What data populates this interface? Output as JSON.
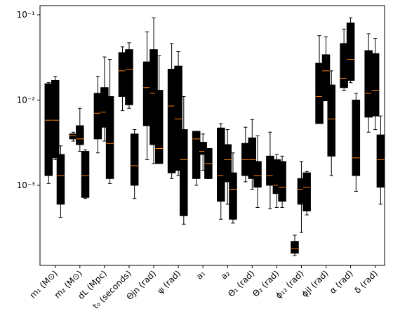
{
  "chart_data": {
    "type": "box",
    "categories": [
      "m₁ (M⊙)",
      "m₂ (M⊙)",
      "dL (Mpc)",
      "t₀ (seconds)",
      "Θjn (rad)",
      "ψ (rad)",
      "a₁",
      "a₂",
      "Θ₁ (rad)",
      "Θ₂ (rad)",
      "ϕ₁₂ (rad)",
      "ϕjl (rad)",
      "α (rad)",
      "δ (rad)"
    ],
    "log_scale": true,
    "ylim": [
      0.000115,
      0.128
    ],
    "yticks": [
      {
        "value": 0.001,
        "label": "10⁻³"
      },
      {
        "value": 0.01,
        "label": "10⁻²"
      },
      {
        "value": 0.1,
        "label": "10⁻¹"
      }
    ],
    "median_color": "#ff7f0e",
    "series": [
      {
        "color": "#1f77b4",
        "values": [
          {
            "whislo": 0.00105,
            "q1": 0.0013,
            "med": 0.0058,
            "q3": 0.0155,
            "whishi": 0.016
          },
          {
            "whislo": 0.0033,
            "q1": 0.0035,
            "med": 0.0038,
            "q3": 0.004,
            "whishi": 0.0042
          },
          {
            "whislo": 0.0024,
            "q1": 0.0035,
            "med": 0.007,
            "q3": 0.012,
            "whishi": 0.019
          },
          {
            "whislo": 0.0075,
            "q1": 0.011,
            "med": 0.022,
            "q3": 0.036,
            "whishi": 0.042
          },
          {
            "whislo": 0.002,
            "q1": 0.005,
            "med": 0.014,
            "q3": 0.028,
            "whishi": 0.063
          },
          {
            "whislo": 0.0012,
            "q1": 0.0014,
            "med": 0.0085,
            "q3": 0.023,
            "whishi": 0.046
          },
          {
            "whislo": 0.001,
            "q1": 0.0012,
            "med": 0.0035,
            "q3": 0.0043,
            "whishi": 0.0043
          },
          {
            "whislo": 0.0004,
            "q1": 0.00065,
            "med": 0.0013,
            "q3": 0.0047,
            "whishi": 0.0053
          },
          {
            "whislo": 0.0011,
            "q1": 0.0013,
            "med": 0.002,
            "q3": 0.0031,
            "whishi": 0.0048
          },
          {
            "whislo": 0.00053,
            "q1": 0.001,
            "med": 0.0013,
            "q3": 0.0022,
            "whishi": 0.0042
          },
          {
            "whislo": 0.00015,
            "q1": 0.00016,
            "med": 0.00018,
            "q3": 0.00022,
            "whishi": 0.00026
          },
          {
            "whislo": 0.0053,
            "q1": 0.0053,
            "med": 0.011,
            "q3": 0.027,
            "whishi": 0.057
          },
          {
            "whislo": 0.013,
            "q1": 0.014,
            "med": 0.018,
            "q3": 0.046,
            "whishi": 0.068
          },
          {
            "whislo": 0.0042,
            "q1": 0.0063,
            "med": 0.012,
            "q3": 0.038,
            "whishi": 0.06
          }
        ]
      },
      {
        "color": "#ff7f0e",
        "values": [
          {
            "whislo": 0.002,
            "q1": 0.0021,
            "med": 0.0058,
            "q3": 0.017,
            "whishi": 0.019
          },
          {
            "whislo": 0.0025,
            "q1": 0.003,
            "med": 0.0035,
            "q3": 0.005,
            "whishi": 0.008
          },
          {
            "whislo": 0.0033,
            "q1": 0.0048,
            "med": 0.0072,
            "q3": 0.014,
            "whishi": 0.032
          },
          {
            "whislo": 0.008,
            "q1": 0.0088,
            "med": 0.023,
            "q3": 0.039,
            "whishi": 0.047
          },
          {
            "whislo": 0.0018,
            "q1": 0.003,
            "med": 0.012,
            "q3": 0.039,
            "whishi": 0.092
          },
          {
            "whislo": 0.0013,
            "q1": 0.0015,
            "med": 0.006,
            "q3": 0.025,
            "whishi": 0.037
          },
          {
            "whislo": 0.0015,
            "q1": 0.0023,
            "med": 0.0025,
            "q3": 0.0032,
            "whishi": 0.004
          },
          {
            "whislo": 0.0006,
            "q1": 0.0011,
            "med": 0.002,
            "q3": 0.003,
            "whishi": 0.0045
          },
          {
            "whislo": 0.0009,
            "q1": 0.0012,
            "med": 0.002,
            "q3": 0.0036,
            "whishi": 0.0059
          },
          {
            "whislo": 0.00055,
            "q1": 0.0008,
            "med": 0.001,
            "q3": 0.002,
            "whishi": 0.0023
          },
          {
            "whislo": 0.00028,
            "q1": 0.0006,
            "med": 0.0009,
            "q3": 0.0012,
            "whishi": 0.0019
          },
          {
            "whislo": 0.0098,
            "q1": 0.0098,
            "med": 0.022,
            "q3": 0.034,
            "whishi": 0.055
          },
          {
            "whislo": 0.016,
            "q1": 0.017,
            "med": 0.03,
            "q3": 0.08,
            "whishi": 0.092
          },
          {
            "whislo": 0.0045,
            "q1": 0.0065,
            "med": 0.013,
            "q3": 0.035,
            "whishi": 0.053
          }
        ]
      },
      {
        "color": "#2ca02c",
        "values": [
          {
            "whislo": 0.00042,
            "q1": 0.0006,
            "med": 0.0013,
            "q3": 0.0023,
            "whishi": 0.0029
          },
          {
            "whislo": 0.0007,
            "q1": 0.00072,
            "med": 0.0013,
            "q3": 0.0025,
            "whishi": 0.0026
          },
          {
            "whislo": 0.00105,
            "q1": 0.0012,
            "med": 0.0031,
            "q3": 0.011,
            "whishi": 0.03
          },
          {
            "whislo": 0.0007,
            "q1": 0.001,
            "med": 0.0017,
            "q3": 0.004,
            "whishi": 0.0045
          },
          {
            "whislo": 0.0018,
            "q1": 0.0018,
            "med": 0.0027,
            "q3": 0.013,
            "whishi": 0.033
          },
          {
            "whislo": 0.00035,
            "q1": 0.00044,
            "med": 0.002,
            "q3": 0.0045,
            "whishi": 0.011
          },
          {
            "whislo": 0.0012,
            "q1": 0.0012,
            "med": 0.0018,
            "q3": 0.0027,
            "whishi": 0.0027
          },
          {
            "whislo": 0.00036,
            "q1": 0.0004,
            "med": 0.0009,
            "q3": 0.0014,
            "whishi": 0.0024
          },
          {
            "whislo": 0.00055,
            "q1": 0.00095,
            "med": 0.0013,
            "q3": 0.0019,
            "whishi": 0.0038
          },
          {
            "whislo": 0.00055,
            "q1": 0.00065,
            "med": 0.00095,
            "q3": 0.0019,
            "whishi": 0.0022
          },
          {
            "whislo": 0.00045,
            "q1": 0.0005,
            "med": 0.00095,
            "q3": 0.0014,
            "whishi": 0.00145
          },
          {
            "whislo": 0.0013,
            "q1": 0.0022,
            "med": 0.006,
            "q3": 0.015,
            "whishi": 0.022
          },
          {
            "whislo": 0.00085,
            "q1": 0.0013,
            "med": 0.0021,
            "q3": 0.01,
            "whishi": 0.012
          },
          {
            "whislo": 0.0006,
            "q1": 0.00095,
            "med": 0.002,
            "q3": 0.0039,
            "whishi": 0.0065
          }
        ]
      }
    ]
  }
}
